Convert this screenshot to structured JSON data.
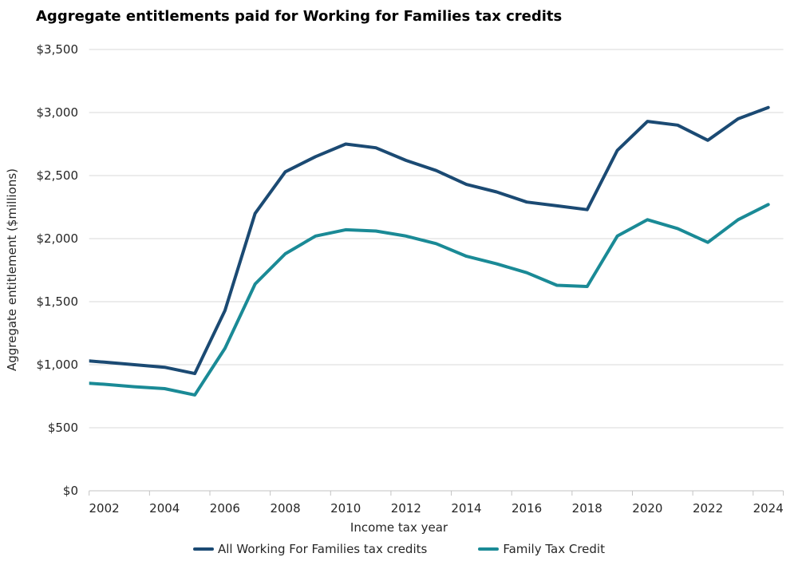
{
  "chart_data": {
    "type": "line",
    "title": "Aggregate entitlements paid for Working for Families tax credits",
    "xlabel": "Income tax year",
    "ylabel": "Aggregate entitlement ($millions)",
    "ylim": [
      0,
      3500
    ],
    "grid": "horizontal",
    "legend_position": "bottom",
    "ytick_values": [
      0,
      500,
      1000,
      1500,
      2000,
      2500,
      3000,
      3500
    ],
    "ytick_labels": [
      "$0",
      "$500",
      "$1,000",
      "$1,500",
      "$2,000",
      "$2,500",
      "$3,000",
      "$3,500"
    ],
    "xtick_labels": [
      "2002",
      "2004",
      "2006",
      "2008",
      "2010",
      "2012",
      "2014",
      "2016",
      "2018",
      "2020",
      "2022",
      "2024"
    ],
    "x": [
      2001,
      2002,
      2003,
      2004,
      2005,
      2006,
      2007,
      2008,
      2009,
      2010,
      2011,
      2012,
      2013,
      2014,
      2015,
      2016,
      2017,
      2018,
      2019,
      2020,
      2021,
      2022,
      2023,
      2024
    ],
    "series": [
      {
        "name": "All Working For Families tax credits",
        "color": "#1B4A73",
        "values": [
          1040,
          1020,
          1000,
          980,
          930,
          1430,
          2200,
          2530,
          2650,
          2750,
          2720,
          2620,
          2540,
          2430,
          2370,
          2290,
          2260,
          2230,
          2700,
          2930,
          2900,
          2780,
          2950,
          3040
        ]
      },
      {
        "name": "Family Tax Credit",
        "color": "#1A8A96",
        "values": [
          860,
          845,
          825,
          810,
          760,
          1130,
          1640,
          1880,
          2020,
          2070,
          2060,
          2020,
          1960,
          1860,
          1800,
          1730,
          1630,
          1620,
          2020,
          2150,
          2080,
          1970,
          2150,
          2270
        ]
      }
    ],
    "axis_color": "#C3C3C3",
    "gridline_color": "#D9D9D9",
    "label_color": "#262626"
  }
}
